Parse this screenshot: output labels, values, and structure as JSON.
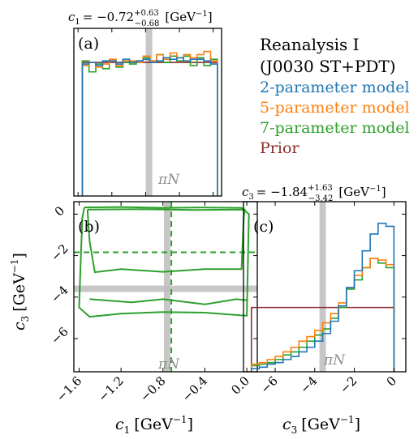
{
  "legend": {
    "header_line1": "Reanalysis I",
    "header_line2": "(J0030 ST+PDT)",
    "items": [
      {
        "label": "2-parameter model",
        "color": "#1f77b4"
      },
      {
        "label": "5-parameter model",
        "color": "#ff7f0e"
      },
      {
        "label": "7-parameter model",
        "color": "#2ca02c"
      },
      {
        "label": "Prior",
        "color": "#8c2d2d"
      }
    ]
  },
  "reference_band": {
    "label_symbol": "π",
    "label_sub": "N",
    "color": "#bdbdbd"
  },
  "titles": {
    "c1": {
      "symbol": "c",
      "index": "1",
      "value": "= −0.72",
      "sup": "+0.63",
      "sub": "−0.68",
      "unit": "[GeV",
      "unit_exp": "−1",
      "unit_end": "]"
    },
    "c3": {
      "symbol": "c",
      "index": "3",
      "value": "= −1.84",
      "sup": "+1.63",
      "sub": "−3.42",
      "unit": "[GeV",
      "unit_exp": "−1",
      "unit_end": "]"
    }
  },
  "axis_labels": {
    "c1": {
      "symbol": "c",
      "index": "1",
      "unit": "[GeV",
      "exp": "−1",
      "end": "]"
    },
    "c3": {
      "symbol": "c",
      "index": "3",
      "unit": "[GeV",
      "exp": "−1",
      "end": "]"
    }
  },
  "panel_labels": {
    "a": "(a)",
    "b": "(b)",
    "c": "(c)"
  },
  "chart_data": [
    {
      "panel": "a",
      "type": "step-histogram",
      "xlim": [
        -1.65,
        0.1
      ],
      "ylim": [
        0,
        1
      ],
      "reference_value": -0.76,
      "bin_edges": [
        -1.55,
        -1.47,
        -1.39,
        -1.31,
        -1.23,
        -1.15,
        -1.07,
        -0.99,
        -0.91,
        -0.83,
        -0.75,
        -0.67,
        -0.59,
        -0.51,
        -0.43,
        -0.35,
        -0.27,
        -0.19,
        -0.11,
        -0.03,
        0.05
      ],
      "series": [
        {
          "name": "2-parameter model",
          "color": "#1f77b4",
          "values": [
            0.84,
            0.85,
            0.83,
            0.86,
            0.86,
            0.84,
            0.87,
            0.85,
            0.86,
            0.87,
            0.85,
            0.86,
            0.88,
            0.87,
            0.88,
            0.86,
            0.87,
            0.87,
            0.86,
            0.84
          ]
        },
        {
          "name": "5-parameter model",
          "color": "#ff7f0e",
          "values": [
            0.83,
            0.85,
            0.82,
            0.84,
            0.87,
            0.83,
            0.86,
            0.86,
            0.85,
            0.89,
            0.86,
            0.9,
            0.87,
            0.91,
            0.88,
            0.9,
            0.88,
            0.9,
            0.92,
            0.86
          ]
        },
        {
          "name": "7-parameter model",
          "color": "#2ca02c",
          "values": [
            0.86,
            0.79,
            0.84,
            0.81,
            0.86,
            0.82,
            0.85,
            0.84,
            0.86,
            0.88,
            0.86,
            0.9,
            0.85,
            0.89,
            0.86,
            0.89,
            0.83,
            0.88,
            0.83,
            0.87
          ]
        },
        {
          "name": "Prior",
          "color": "#8c2d2d",
          "values": [
            0.85,
            0.85,
            0.85,
            0.85,
            0.85,
            0.85,
            0.85,
            0.85,
            0.85,
            0.85,
            0.85,
            0.85,
            0.85,
            0.85,
            0.85,
            0.85,
            0.85,
            0.85,
            0.85,
            0.85
          ]
        }
      ]
    },
    {
      "panel": "b",
      "type": "contour",
      "xlim": [
        -1.65,
        0.1
      ],
      "ylim": [
        -7.6,
        0.6
      ],
      "xticks": [
        -1.6,
        -1.2,
        -0.8,
        -0.4,
        0.0
      ],
      "xtick_labels": [
        "−1.6",
        "−1.2",
        "−0.8",
        "−0.4",
        "0.0"
      ],
      "yticks": [
        0,
        -2,
        -4,
        -6
      ],
      "ytick_labels": [
        "0",
        "−2",
        "−4",
        "−6"
      ],
      "reference_x": -0.76,
      "reference_y": -3.6,
      "series": [
        {
          "name": "7-parameter model",
          "color": "#2ca02c",
          "contours": [
            [
              [
                -1.55,
                0.32
              ],
              [
                -1.2,
                0.34
              ],
              [
                -0.8,
                0.3
              ],
              [
                -0.4,
                0.32
              ],
              [
                -0.05,
                0.3
              ],
              [
                0.02,
                0.0
              ],
              [
                0.0,
                -4.9
              ],
              [
                -0.4,
                -4.75
              ],
              [
                -0.8,
                -4.72
              ],
              [
                -1.2,
                -4.8
              ],
              [
                -1.5,
                -4.95
              ],
              [
                -1.6,
                -4.5
              ],
              [
                -1.57,
                -0.2
              ],
              [
                -1.55,
                0.32
              ]
            ],
            [
              [
                -1.52,
                0.22
              ],
              [
                -1.0,
                0.24
              ],
              [
                -0.5,
                0.2
              ],
              [
                -0.02,
                0.22
              ],
              [
                -0.03,
                -0.2
              ],
              [
                -0.05,
                -2.65
              ],
              [
                -0.4,
                -2.65
              ],
              [
                -0.8,
                -2.78
              ],
              [
                -1.2,
                -2.65
              ],
              [
                -1.45,
                -2.8
              ],
              [
                -1.5,
                -1.3
              ],
              [
                -1.52,
                0.22
              ]
            ],
            [
              [
                -1.5,
                -4.1
              ],
              [
                -1.1,
                -4.25
              ],
              [
                -0.8,
                -4.1
              ],
              [
                -0.4,
                -4.35
              ],
              [
                -0.1,
                -4.1
              ],
              [
                0.0,
                -4.15
              ]
            ]
          ],
          "marginal_median_x": -0.72,
          "marginal_median_y": -1.84
        }
      ]
    },
    {
      "panel": "c",
      "type": "step-histogram",
      "xlim": [
        -7.6,
        0.6
      ],
      "ylim": [
        0,
        1
      ],
      "xticks": [
        -6,
        -4,
        -2,
        0
      ],
      "xtick_labels": [
        "−6",
        "−4",
        "−2",
        "0"
      ],
      "reference_value": -3.6,
      "bin_edges": [
        -7.2,
        -6.8,
        -6.4,
        -6.0,
        -5.6,
        -5.2,
        -4.8,
        -4.4,
        -4.0,
        -3.6,
        -3.2,
        -2.8,
        -2.4,
        -2.0,
        -1.6,
        -1.2,
        -0.8,
        -0.4,
        0.0
      ],
      "series": [
        {
          "name": "2-parameter model",
          "color": "#1f77b4",
          "values": [
            0.02,
            0.03,
            0.05,
            0.06,
            0.08,
            0.1,
            0.13,
            0.16,
            0.2,
            0.25,
            0.33,
            0.43,
            0.55,
            0.66,
            0.79,
            0.9,
            0.97,
            0.95
          ]
        },
        {
          "name": "5-parameter model",
          "color": "#ff7f0e",
          "values": [
            0.05,
            0.06,
            0.08,
            0.1,
            0.13,
            0.16,
            0.2,
            0.23,
            0.27,
            0.32,
            0.38,
            0.45,
            0.55,
            0.63,
            0.68,
            0.74,
            0.73,
            0.7
          ]
        },
        {
          "name": "7-parameter model",
          "color": "#2ca02c",
          "values": [
            0.04,
            0.05,
            0.06,
            0.08,
            0.11,
            0.13,
            0.16,
            0.2,
            0.24,
            0.28,
            0.35,
            0.42,
            0.54,
            0.6,
            0.68,
            0.74,
            0.71,
            0.68
          ]
        },
        {
          "name": "Prior",
          "color": "#8c2d2d",
          "values": [
            0.42,
            0.42,
            0.42,
            0.42,
            0.42,
            0.42,
            0.42,
            0.42,
            0.42,
            0.42,
            0.42,
            0.42,
            0.42,
            0.42,
            0.42,
            0.42,
            0.42,
            0.42
          ]
        }
      ]
    }
  ]
}
